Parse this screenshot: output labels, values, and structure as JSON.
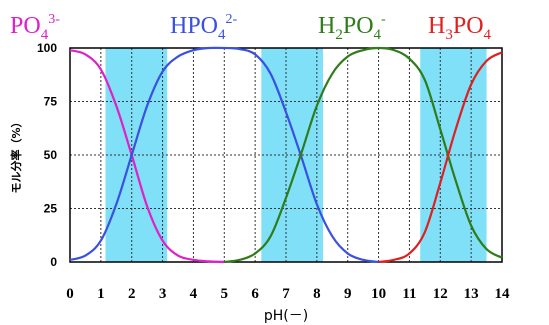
{
  "chart_data": {
    "type": "line",
    "xlabel": "pH(－)",
    "ylabel": "モル分率（%）",
    "xlim": [
      0,
      14
    ],
    "ylim": [
      0,
      100
    ],
    "x_ticks": [
      "0",
      "1",
      "2",
      "3",
      "4",
      "5",
      "6",
      "7",
      "8",
      "9",
      "10",
      "11",
      "12",
      "13",
      "14"
    ],
    "y_ticks": [
      "0",
      "25",
      "50",
      "75",
      "100"
    ],
    "grid": true,
    "highlight_ranges": [
      [
        1.15,
        3.15
      ],
      [
        6.2,
        8.2
      ],
      [
        11.35,
        13.5
      ]
    ],
    "highlight_color": "#7fe0f7",
    "series": [
      {
        "name": "PO4 3-",
        "label_main": "PO",
        "label_sub": "4",
        "label_sup": "3-",
        "label_tail": "",
        "label_pre": "",
        "color": "#e020c8",
        "x": [
          0,
          0.5,
          1,
          1.5,
          2,
          2.5,
          3,
          3.5,
          4,
          4.5,
          5
        ],
        "y": [
          99,
          97,
          90,
          73,
          50,
          26,
          10,
          3,
          1,
          0.3,
          0
        ]
      },
      {
        "name": "HPO4 2-",
        "label_main": "HPO",
        "label_sub": "4",
        "label_sup": "2-",
        "label_tail": "",
        "label_pre": "",
        "color": "#3a50e0",
        "x": [
          0,
          0.5,
          1,
          1.5,
          2,
          2.5,
          3,
          3.5,
          4,
          4.5,
          5,
          5.5,
          6,
          6.5,
          7,
          7.5,
          8,
          8.5,
          9,
          9.5,
          10
        ],
        "y": [
          1,
          3,
          10,
          27,
          50,
          73,
          89,
          96,
          99,
          100,
          100,
          99.5,
          97,
          88,
          70,
          49,
          27,
          12,
          4,
          1,
          0
        ]
      },
      {
        "name": "H2PO4 -",
        "label_main": "PO",
        "label_sub": "4",
        "label_sup": "-",
        "label_tail": "",
        "label_pre": "H",
        "label_pre_sub": "2",
        "color": "#2e7d1a",
        "x": [
          5,
          5.5,
          6,
          6.5,
          7,
          7.5,
          8,
          8.5,
          9,
          9.5,
          10,
          10.5,
          11,
          11.5,
          12,
          12.5,
          13,
          13.5,
          14
        ],
        "y": [
          0,
          1,
          4,
          12,
          30,
          51,
          73,
          88,
          96,
          99,
          100,
          99,
          95,
          85,
          62,
          38,
          17,
          6,
          2
        ]
      },
      {
        "name": "H3PO4",
        "label_main": "PO",
        "label_sub": "4",
        "label_sup": "",
        "label_tail": "",
        "label_pre": "H",
        "label_pre_sub": "3",
        "color": "#e02020",
        "x": [
          10,
          10.5,
          11,
          11.5,
          12,
          12.5,
          13,
          13.5,
          14
        ],
        "y": [
          0,
          1,
          4,
          14,
          37,
          62,
          83,
          94,
          98
        ]
      }
    ]
  }
}
